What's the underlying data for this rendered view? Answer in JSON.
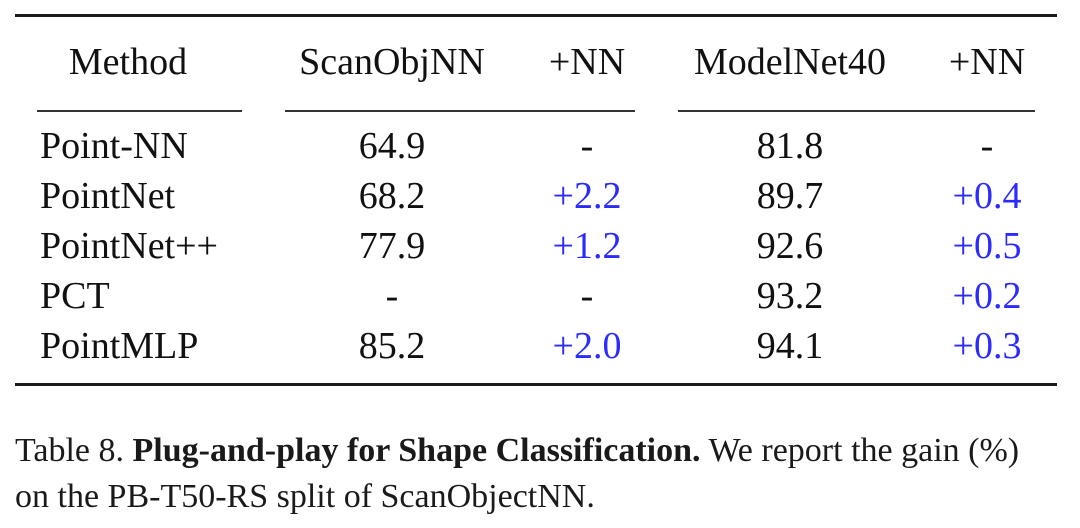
{
  "table": {
    "headers": [
      "Method",
      "ScanObjNN",
      "+NN",
      "ModelNet40",
      "+NN"
    ],
    "rows": [
      [
        "Point-NN",
        "64.9",
        "-",
        "81.8",
        "-"
      ],
      [
        "PointNet",
        "68.2",
        "+2.2",
        "89.7",
        "+0.4"
      ],
      [
        "PointNet++",
        "77.9",
        "+1.2",
        "92.6",
        "+0.5"
      ],
      [
        "PCT",
        "-",
        "-",
        "93.2",
        "+0.2"
      ],
      [
        "PointMLP",
        "85.2",
        "+2.0",
        "94.1",
        "+0.3"
      ]
    ]
  },
  "caption": {
    "label": "Table 8.",
    "title": "Plug-and-play for Shape Classification.",
    "text": "We report the gain (%) on the PB-T50-RS split of ScanObjectNN."
  },
  "colors": {
    "gain": "#2b2bff",
    "text": "#111111"
  }
}
